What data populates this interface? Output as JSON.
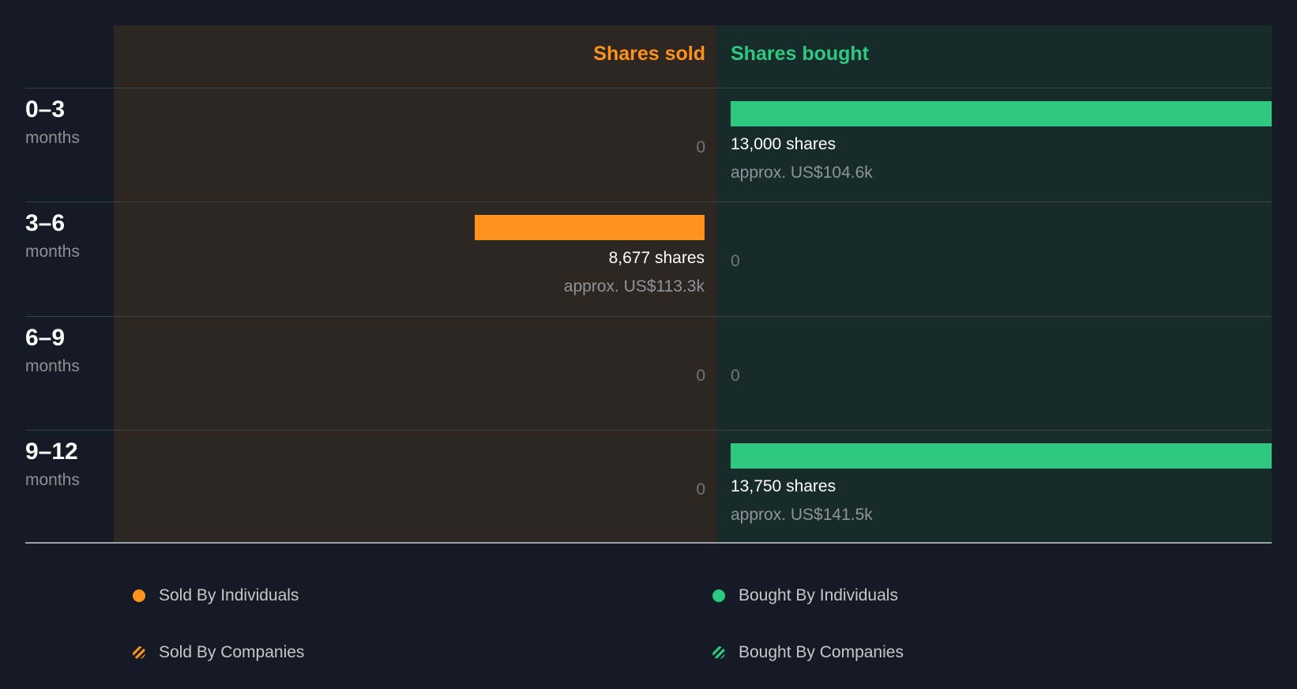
{
  "chart_data": {
    "type": "bar",
    "orientation": "horizontal-diverging",
    "headers": {
      "sold": "Shares sold",
      "bought": "Shares bought"
    },
    "unit_label": "months",
    "periods": [
      {
        "range": "0–3",
        "sold": 0,
        "bought": 13000,
        "sold_label": "0",
        "bought_label": "13,000 shares",
        "bought_value": "approx. US$104.6k"
      },
      {
        "range": "3–6",
        "sold": 8677,
        "bought": 0,
        "sold_label": "8,677 shares",
        "sold_value": "approx. US$113.3k",
        "bought_label": "0"
      },
      {
        "range": "6–9",
        "sold": 0,
        "bought": 0,
        "sold_label": "0",
        "bought_label": "0"
      },
      {
        "range": "9–12",
        "sold": 0,
        "bought": 13750,
        "sold_label": "0",
        "bought_label": "13,750 shares",
        "bought_value": "approx. US$141.5k"
      }
    ],
    "max_value": 13750,
    "legend": [
      {
        "label": "Sold By Individuals",
        "key": "sold-ind"
      },
      {
        "label": "Bought By Individuals",
        "key": "bought-ind"
      },
      {
        "label": "Sold By Companies",
        "key": "sold-co"
      },
      {
        "label": "Bought By Companies",
        "key": "bought-co"
      }
    ],
    "colors": {
      "sold": "#ff931e",
      "bought": "#2ec880"
    }
  }
}
